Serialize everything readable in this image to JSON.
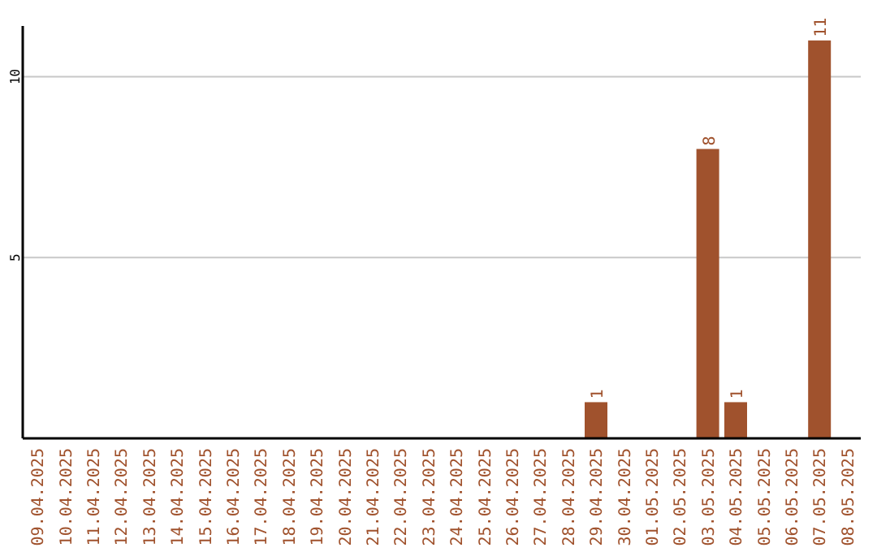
{
  "chart_data": {
    "type": "bar",
    "categories": [
      "09.04.2025",
      "10.04.2025",
      "11.04.2025",
      "12.04.2025",
      "13.04.2025",
      "14.04.2025",
      "15.04.2025",
      "16.04.2025",
      "17.04.2025",
      "18.04.2025",
      "19.04.2025",
      "20.04.2025",
      "21.04.2025",
      "22.04.2025",
      "23.04.2025",
      "24.04.2025",
      "25.04.2025",
      "26.04.2025",
      "27.04.2025",
      "28.04.2025",
      "29.04.2025",
      "30.04.2025",
      "01.05.2025",
      "02.05.2025",
      "03.05.2025",
      "04.05.2025",
      "05.05.2025",
      "06.05.2025",
      "07.05.2025",
      "08.05.2025"
    ],
    "values": [
      0,
      0,
      0,
      0,
      0,
      0,
      0,
      0,
      0,
      0,
      0,
      0,
      0,
      0,
      0,
      0,
      0,
      0,
      0,
      0,
      1,
      0,
      0,
      0,
      8,
      1,
      0,
      0,
      11,
      0
    ],
    "value_labels": [
      null,
      null,
      null,
      null,
      null,
      null,
      null,
      null,
      null,
      null,
      null,
      null,
      null,
      null,
      null,
      null,
      null,
      null,
      null,
      null,
      "1",
      null,
      null,
      null,
      "8",
      "1",
      null,
      null,
      "11",
      null
    ],
    "color": "#a0522d",
    "ylim": [
      0,
      11.4
    ],
    "yticks": [
      5,
      10
    ],
    "grid": "y"
  }
}
